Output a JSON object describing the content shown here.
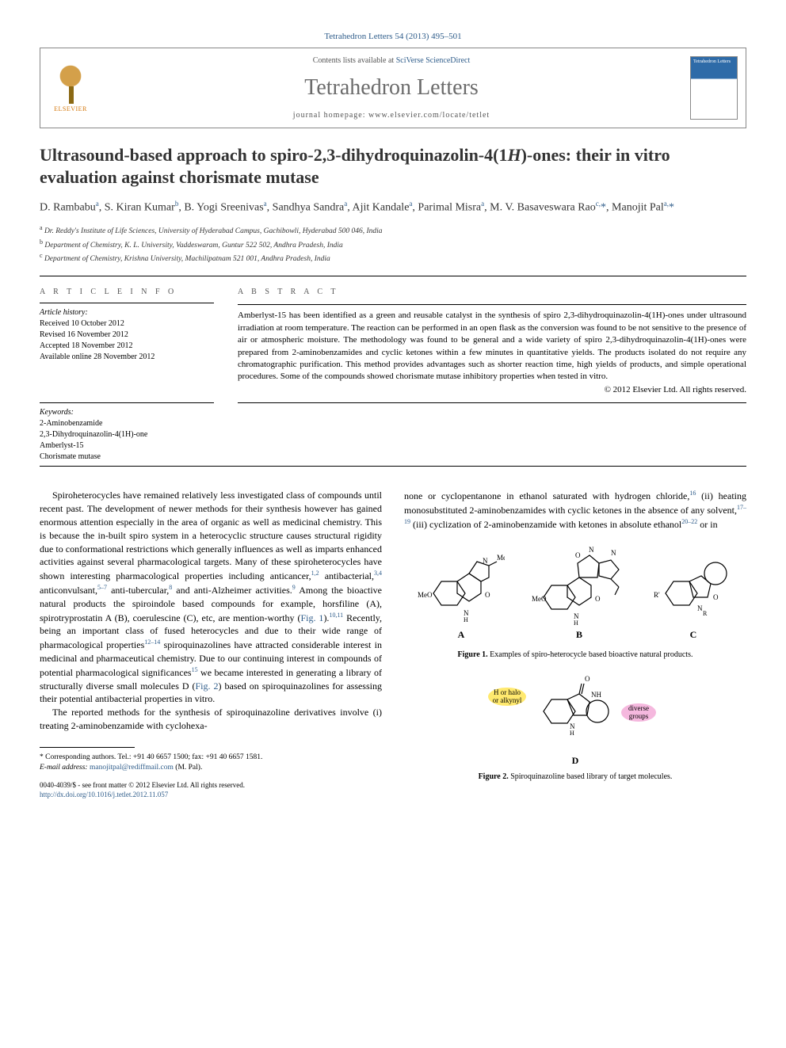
{
  "citation": "Tetrahedron Letters 54 (2013) 495–501",
  "header": {
    "contents_prefix": "Contents lists available at ",
    "contents_link": "SciVerse ScienceDirect",
    "journal": "Tetrahedron Letters",
    "homepage_prefix": "journal homepage: ",
    "homepage": "www.elsevier.com/locate/tetlet",
    "publisher": "ELSEVIER",
    "cover_title": "Tetrahedron Letters"
  },
  "title_part1": "Ultrasound-based approach to spiro-2,3-dihydroquinazolin-4(1",
  "title_italic": "H",
  "title_part2": ")-ones: their in vitro evaluation against chorismate mutase",
  "authors_html": "D. Rambabu<sup>a</sup>, S. Kiran Kumar<sup>b</sup>, B. Yogi Sreenivas<sup>a</sup>, Sandhya Sandra<sup>a</sup>, Ajit Kandale<sup>a</sup>, Parimal Misra<sup>a</sup>, M. V. Basaveswara Rao<sup>c,</sup><span class='author-link'>*</span>, Manojit Pal<sup>a,</sup><span class='author-link'>*</span>",
  "affiliations": {
    "a": "Dr. Reddy's Institute of Life Sciences, University of Hyderabad Campus, Gachibowli, Hyderabad 500 046, India",
    "b": "Department of Chemistry, K. L. University, Vaddeswaram, Guntur 522 502, Andhra Pradesh, India",
    "c": "Department of Chemistry, Krishna University, Machilipatnam 521 001, Andhra Pradesh, India"
  },
  "article_info": {
    "header": "A R T I C L E   I N F O",
    "history_title": "Article history:",
    "received": "Received 10 October 2012",
    "revised": "Revised 16 November 2012",
    "accepted": "Accepted 18 November 2012",
    "online": "Available online 28 November 2012",
    "keywords_title": "Keywords:",
    "keywords": [
      "2-Aminobenzamide",
      "2,3-Dihydroquinazolin-4(1H)-one",
      "Amberlyst-15",
      "Chorismate mutase"
    ]
  },
  "abstract": {
    "header": "A B S T R A C T",
    "text": "Amberlyst-15 has been identified as a green and reusable catalyst in the synthesis of spiro 2,3-dihydroquinazolin-4(1H)-ones under ultrasound irradiation at room temperature. The reaction can be performed in an open flask as the conversion was found to be not sensitive to the presence of air or atmospheric moisture. The methodology was found to be general and a wide variety of spiro 2,3-dihydroquinazolin-4(1H)-ones were prepared from 2-aminobenzamides and cyclic ketones within a few minutes in quantitative yields. The products isolated do not require any chromatographic purification. This method provides advantages such as shorter reaction time, high yields of products, and simple operational procedures. Some of the compounds showed chorismate mutase inhibitory properties when tested in vitro.",
    "copyright": "© 2012 Elsevier Ltd. All rights reserved."
  },
  "body": {
    "col1_para1": "Spiroheterocycles have remained relatively less investigated class of compounds until recent past. The development of newer methods for their synthesis however has gained enormous attention especially in the area of organic as well as medicinal chemistry. This is because the in-built spiro system in a heterocyclic structure causes structural rigidity due to conformational restrictions which generally influences as well as imparts enhanced activities against several pharmacological targets. Many of these spiroheterocycles have shown interesting pharmacological properties including anticancer,",
    "col1_refs1": "1,2",
    "col1_text2": " antibacterial,",
    "col1_refs2": "3,4",
    "col1_text3": " anticonvulsant,",
    "col1_refs3": "5–7",
    "col1_text4": " anti-tubercular,",
    "col1_refs4": "8",
    "col1_text5": " and anti-Alzheimer activities.",
    "col1_refs5": "9",
    "col1_text6": " Among the bioactive natural products the spiroindole based compounds for example, horsfiline (A), spirotryprostatin A (B), coerulescine (C), etc, are mention-worthy (",
    "col1_fig1": "Fig. 1",
    "col1_text7": ").",
    "col1_refs6": "10,11",
    "col1_text8": " Recently, being an important class of fused heterocycles and due to their wide range of pharmacological properties",
    "col1_refs7": "12–14",
    "col1_text9": " spiroquinazolines have attracted considerable interest in medicinal and pharmaceutical chemistry. Due to our continuing interest in compounds of potential pharmacological significances",
    "col1_refs8": "15",
    "col1_text10": " we became interested in generating a library of structurally diverse small molecules D (",
    "col1_fig2": "Fig. 2",
    "col1_text11": ") based on spiroquinazolines for assessing their potential antibacterial properties in vitro.",
    "col1_para2": "The reported methods for the synthesis of spiroquinazoline derivatives involve (i) treating 2-aminobenzamide with cyclohexa-",
    "col2_text1": "none or cyclopentanone in ethanol saturated with hydrogen chloride,",
    "col2_refs1": "16",
    "col2_text2": " (ii) heating monosubstituted 2-aminobenzamides with cyclic ketones in the absence of any solvent,",
    "col2_refs2": "17–19",
    "col2_text3": " (iii) cyclization of 2-aminobenzamide with ketones in absolute ethanol",
    "col2_refs3": "20–22",
    "col2_text4": " or in"
  },
  "figures": {
    "fig1": {
      "labels": [
        "A",
        "B",
        "C"
      ],
      "mol_A_text": "MeO",
      "mol_A_groups": [
        "N",
        "Me",
        "N",
        "H",
        "O"
      ],
      "mol_B_text": "MeO",
      "mol_B_groups": [
        "N",
        "O",
        "N",
        "H",
        "O"
      ],
      "mol_C_text": "R'",
      "mol_C_groups": [
        "N",
        "R",
        "O"
      ],
      "caption_label": "Figure 1.",
      "caption_text": " Examples of spiro-heterocycle based bioactive natural products."
    },
    "fig2": {
      "label": "D",
      "highlight1": "H or halo or alkynyl",
      "highlight2": "diverse groups",
      "groups": [
        "O",
        "NH",
        "N",
        "H"
      ],
      "caption_label": "Figure 2.",
      "caption_text": " Spiroquinazoline based library of target molecules."
    }
  },
  "footnote": {
    "corr_label": "* Corresponding authors. Tel.: +91 40 6657 1500; fax: +91 40 6657 1581.",
    "email_label": "E-mail address:",
    "email": "manojitpal@rediffmail.com",
    "email_suffix": " (M. Pal)."
  },
  "bottom": {
    "issn": "0040-4039/$ - see front matter © 2012 Elsevier Ltd. All rights reserved.",
    "doi": "http://dx.doi.org/10.1016/j.tetlet.2012.11.057"
  },
  "colors": {
    "link": "#2e5c8a",
    "text": "#000000",
    "journal_gray": "#6b6b6b",
    "highlight_yellow": "#ffe96e",
    "highlight_pink": "#f5b8de",
    "elsevier_orange": "#d4760a"
  }
}
